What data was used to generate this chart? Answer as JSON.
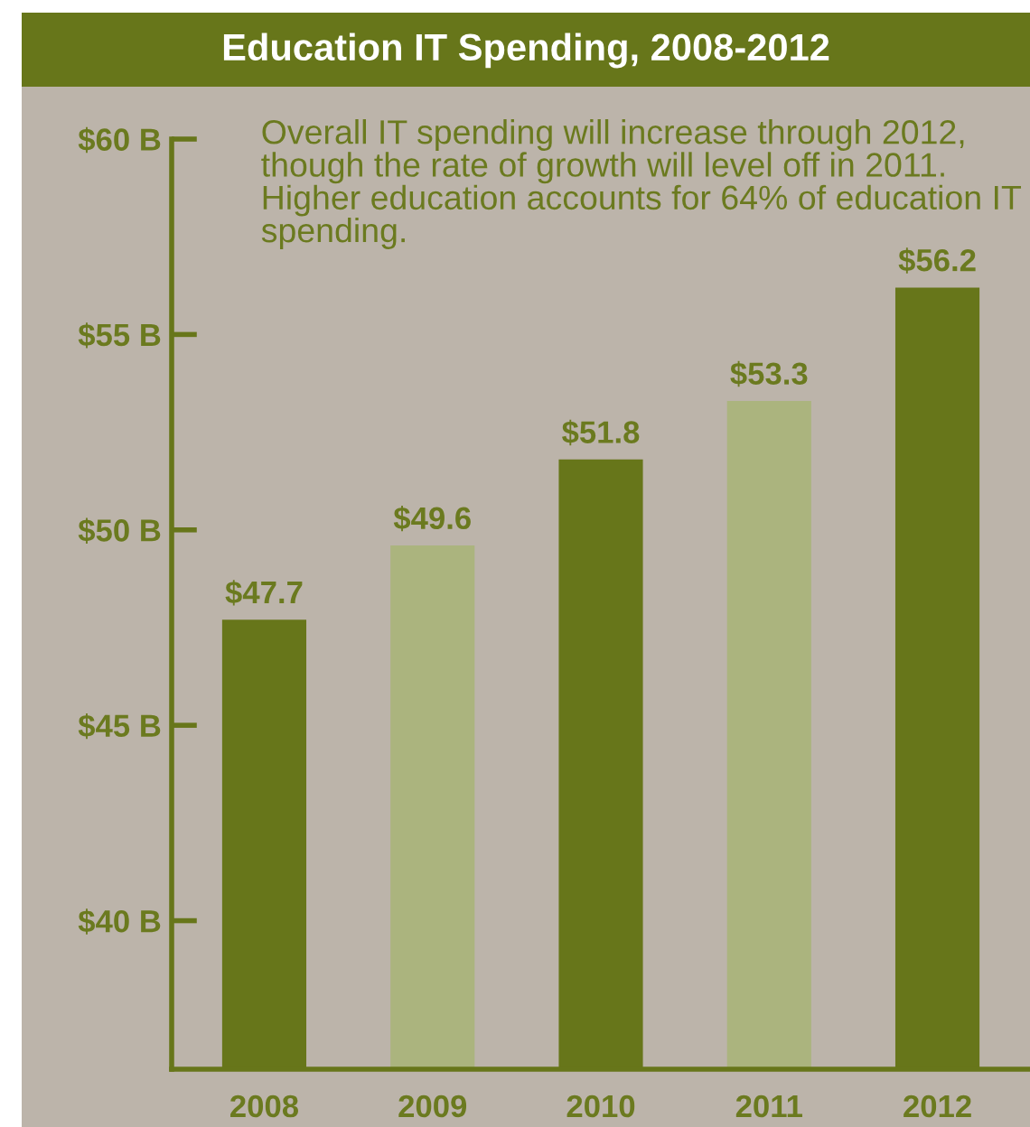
{
  "chart_data": {
    "type": "bar",
    "title": "Education IT Spending, 2008-2012",
    "categories": [
      "2008",
      "2009",
      "2010",
      "2011",
      "2012"
    ],
    "values": [
      47.7,
      49.6,
      51.8,
      53.3,
      56.2
    ],
    "colors": [
      "#67761a",
      "#abb47e",
      "#67761a",
      "#abb47e",
      "#67761a"
    ],
    "value_labels": [
      "$47.7",
      "$49.6",
      "$51.8",
      "$53.3",
      "$56.2"
    ],
    "ylim": [
      36.2,
      60
    ],
    "yticks": [
      {
        "value": 40,
        "label": "$40 B"
      },
      {
        "value": 45,
        "label": "$45 B"
      },
      {
        "value": 50,
        "label": "$50 B"
      },
      {
        "value": 55,
        "label": "$55 B"
      },
      {
        "value": 60,
        "label": "$60 B"
      }
    ],
    "annotations": [
      "Overall IT spending will increase through 2012, though the rate of growth will level off in 2011. Higher education accounts for 64% of education IT spending."
    ],
    "grid": false
  }
}
